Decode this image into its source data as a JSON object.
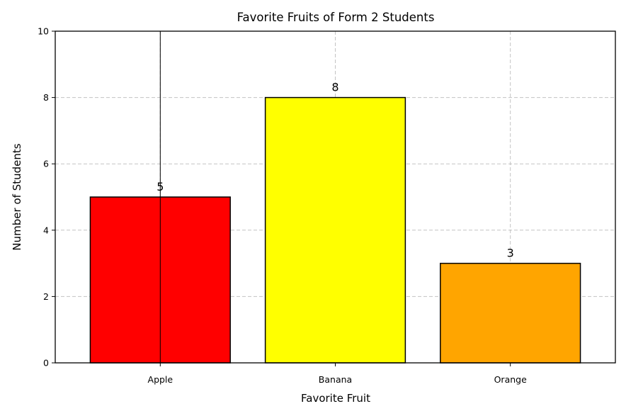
{
  "chart_data": {
    "type": "bar",
    "title": "Favorite Fruits of Form 2 Students",
    "xlabel": "Favorite Fruit",
    "ylabel": "Number of Students",
    "categories": [
      "Apple",
      "Banana",
      "Orange"
    ],
    "values": [
      5,
      8,
      3
    ],
    "data_labels": [
      "5",
      "8",
      "3"
    ],
    "colors": [
      "#ff0000",
      "#ffff00",
      "#ffa500"
    ],
    "edge_color": "#000000",
    "ylim": [
      0,
      10
    ],
    "yticks": [
      0,
      2,
      4,
      6,
      8,
      10
    ],
    "ytick_labels": [
      "0",
      "2",
      "4",
      "6",
      "8",
      "10"
    ],
    "grid": true,
    "grid_style": "dashed",
    "legend": "none"
  }
}
